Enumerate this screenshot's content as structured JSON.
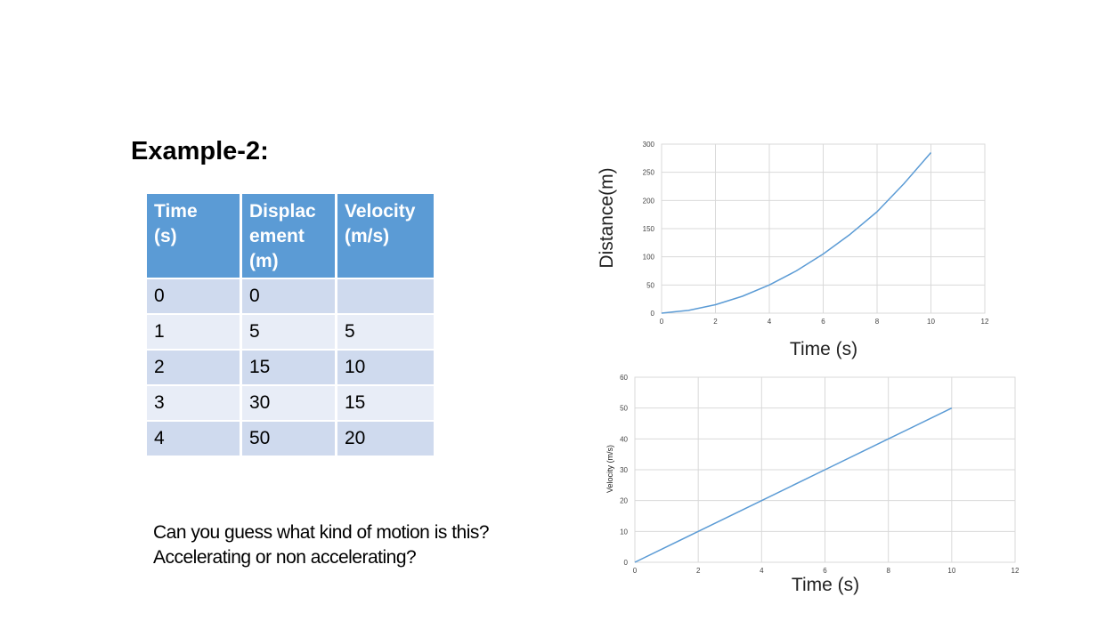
{
  "slide": {
    "title": "Example-2:",
    "question_line1": "Can you  guess what kind of motion is this?",
    "question_line2": "Accelerating or non accelerating?"
  },
  "table": {
    "headers": [
      [
        "Time",
        "(s)"
      ],
      [
        "Displac",
        "ement",
        "(m)"
      ],
      [
        "Velocity",
        "(m/s)"
      ]
    ],
    "rows": [
      [
        "0",
        "0",
        ""
      ],
      [
        "1",
        "5",
        "5"
      ],
      [
        "2",
        "15",
        "10"
      ],
      [
        "3",
        "30",
        "15"
      ],
      [
        "4",
        "50",
        "20"
      ]
    ]
  },
  "chart_data": [
    {
      "type": "line",
      "title": "",
      "xlabel": "Time (s)",
      "ylabel": "Distance(m)",
      "xlim": [
        0,
        12
      ],
      "ylim": [
        0,
        300
      ],
      "xticks": [
        0,
        2,
        4,
        6,
        8,
        10,
        12
      ],
      "yticks": [
        0,
        50,
        100,
        150,
        200,
        250,
        300
      ],
      "grid": true,
      "series": [
        {
          "name": "Distance",
          "color": "#5b9bd5",
          "x": [
            0,
            1,
            2,
            3,
            4,
            5,
            6,
            7,
            8,
            9,
            10
          ],
          "y": [
            0,
            5,
            15,
            30,
            50,
            75,
            105,
            140,
            180,
            230,
            285
          ]
        }
      ]
    },
    {
      "type": "line",
      "title": "",
      "xlabel": "Time (s)",
      "ylabel": "Velocity (m/s)",
      "xlim": [
        0,
        12
      ],
      "ylim": [
        0,
        60
      ],
      "xticks": [
        0,
        2,
        4,
        6,
        8,
        10,
        12
      ],
      "yticks": [
        0,
        10,
        20,
        30,
        40,
        50,
        60
      ],
      "grid": true,
      "series": [
        {
          "name": "Velocity",
          "color": "#5b9bd5",
          "x": [
            0,
            2,
            4,
            6,
            8,
            10
          ],
          "y": [
            0,
            10,
            20,
            30,
            40,
            50
          ]
        }
      ]
    }
  ]
}
